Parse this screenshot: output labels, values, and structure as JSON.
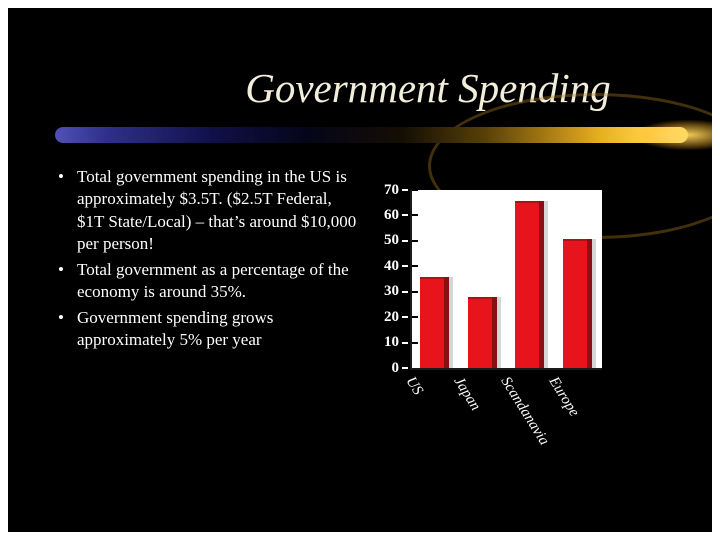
{
  "slide": {
    "title": "Government Spending",
    "bullets": [
      "Total government spending in the US is approximately $3.5T. ($2.5T Federal, $1T State/Local) – that’s around $10,000 per person!",
      "Total government as a percentage of the economy is around 35%.",
      "Government spending grows approximately 5% per year"
    ]
  },
  "chart_data": {
    "type": "bar",
    "categories": [
      "US",
      "Japan",
      "Scandanavia",
      "Europe"
    ],
    "values": [
      35,
      27,
      65,
      50
    ],
    "title": "",
    "xlabel": "",
    "ylabel": "",
    "ylim": [
      0,
      70
    ],
    "yticks": [
      0,
      10,
      20,
      30,
      40,
      50,
      60,
      70
    ],
    "grid": false,
    "legend_position": "none",
    "bar_color": "#e8141c",
    "bar_side_color": "#8a0f14",
    "plot_background": "#ffffff"
  },
  "colors": {
    "slide_background": "#000000",
    "text": "#ffffff",
    "title_text": "#f2eedb",
    "accent_gold": "#e8ae22",
    "accent_blue": "#30308c"
  }
}
